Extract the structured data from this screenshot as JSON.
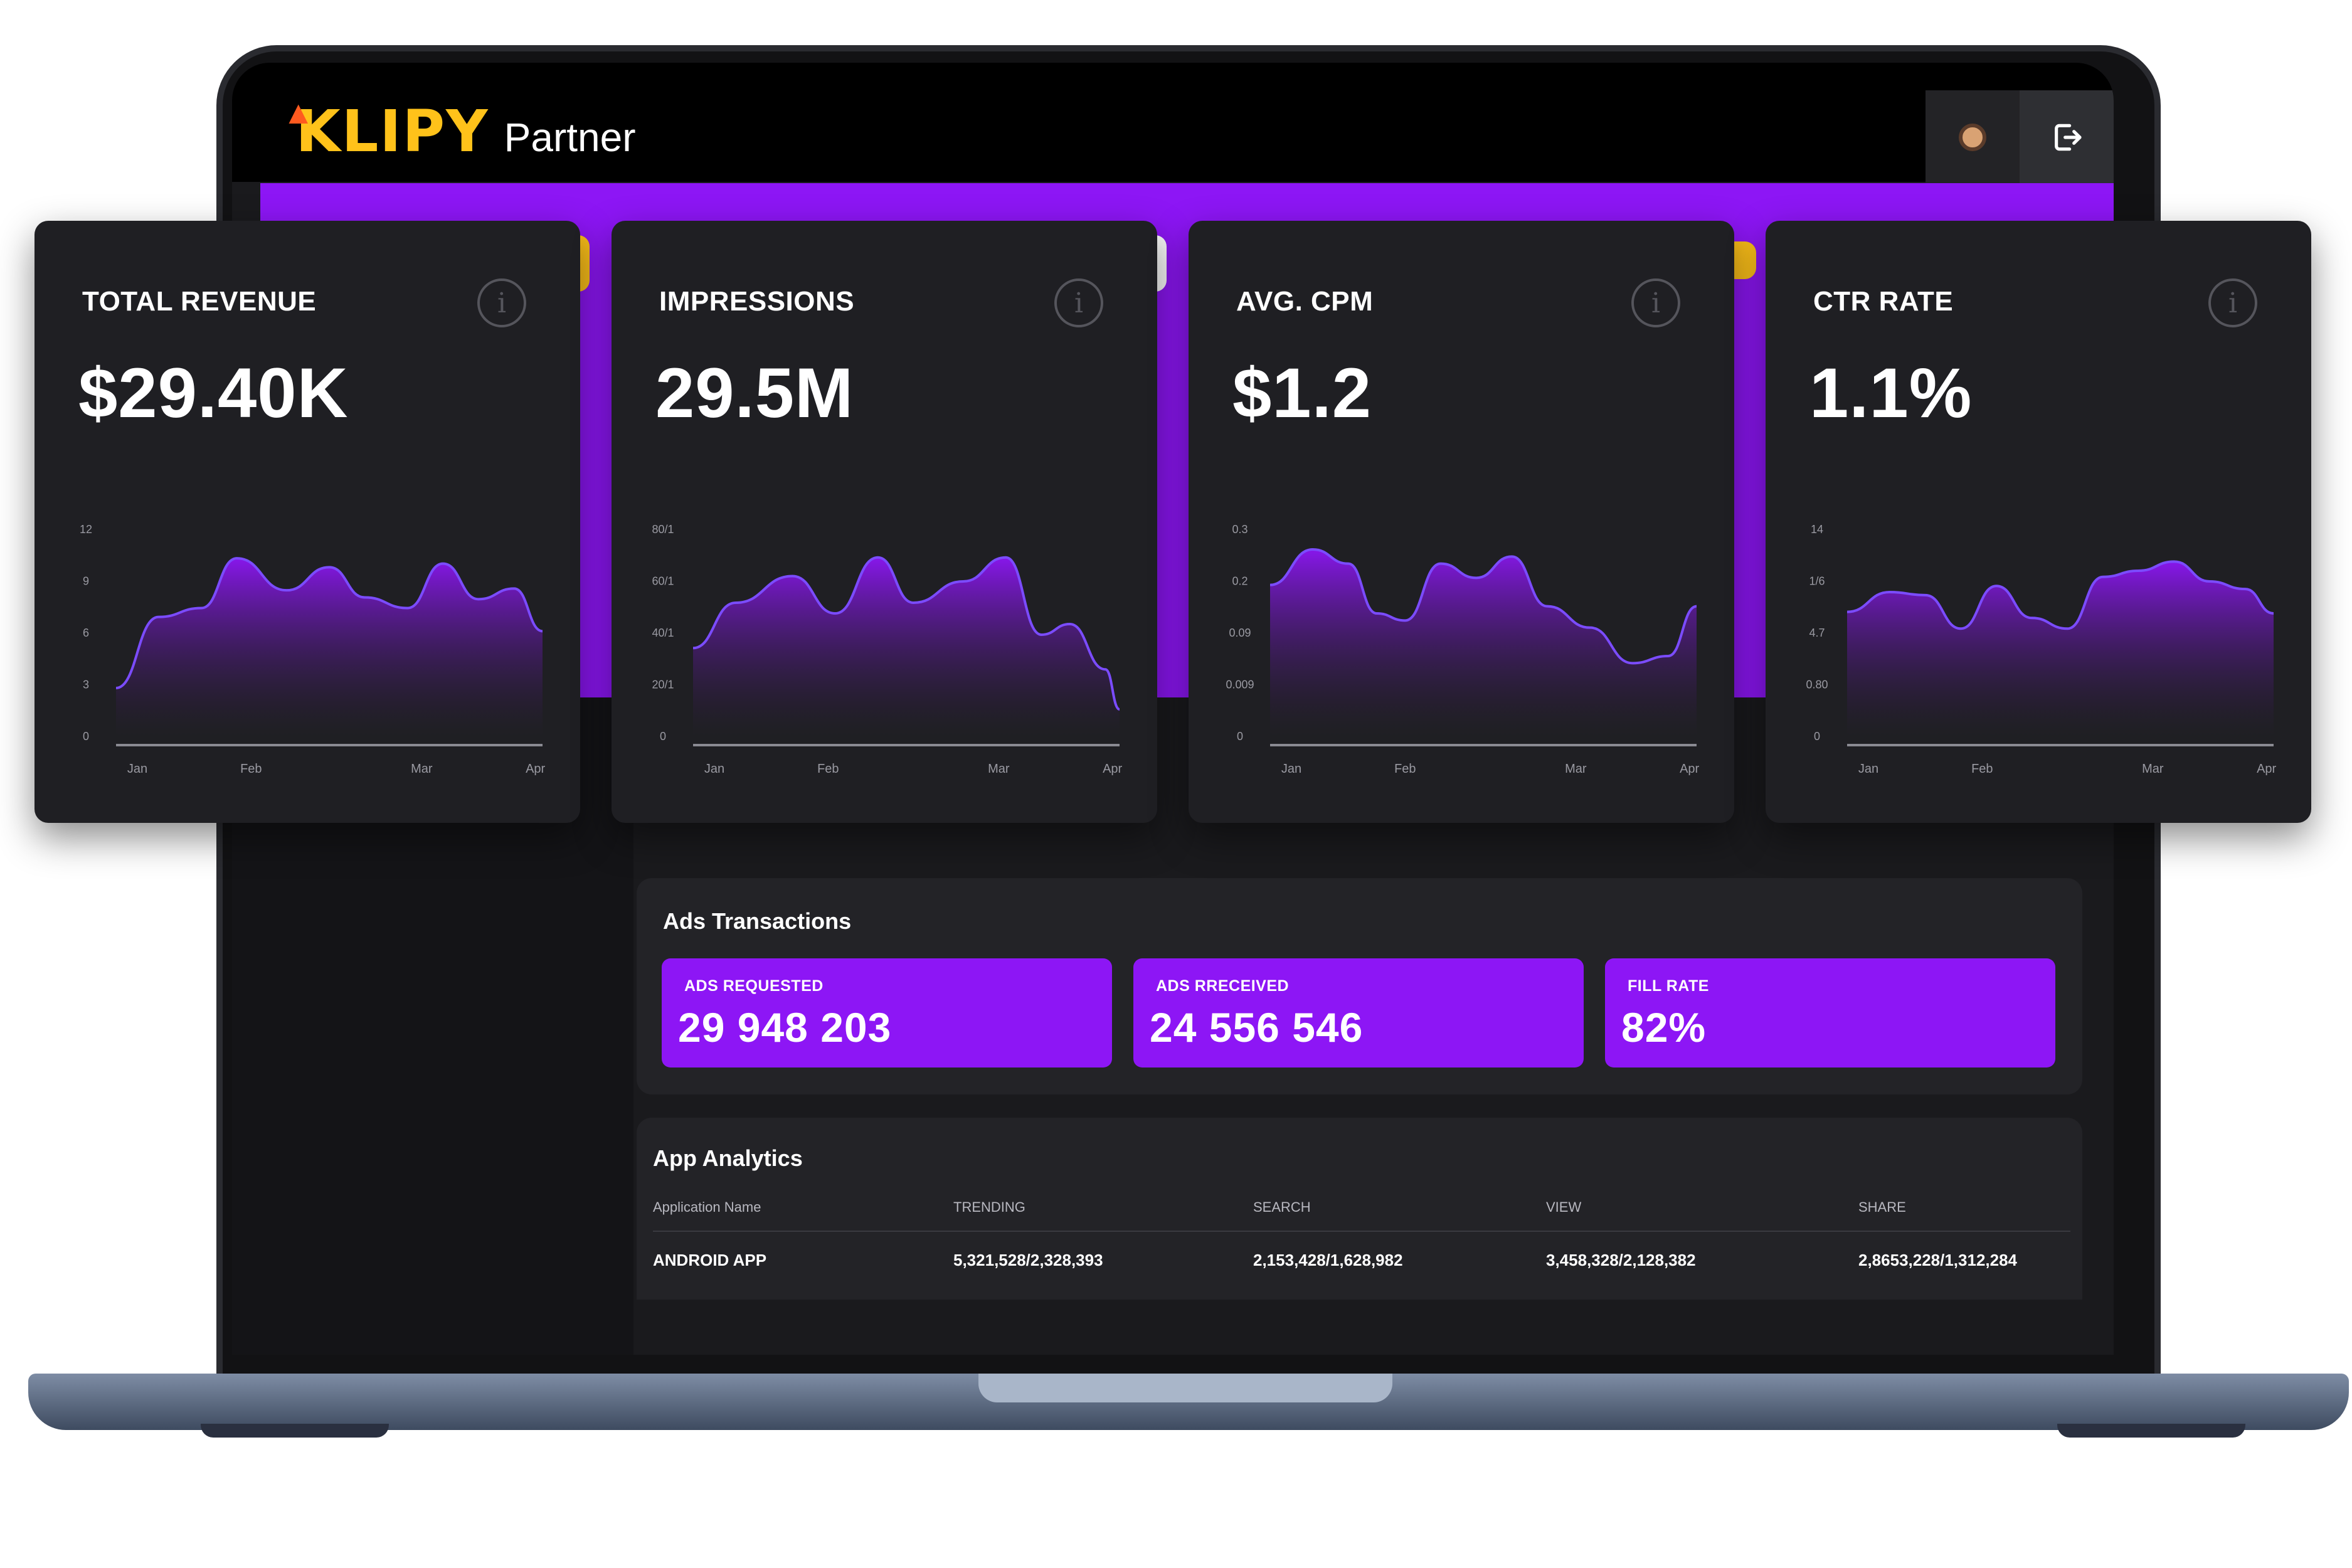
{
  "header": {
    "brand": "KLIPY",
    "brand_suffix": "Partner",
    "avatar_icon": "avatar-icon",
    "logout_icon": "logout-icon"
  },
  "colors": {
    "accent": "#8d16f5",
    "brand_yellow": "#ffc21a",
    "card_bg": "#1f1f23",
    "screen_bg": "#1a1a1d"
  },
  "metrics": [
    {
      "label": "TOTAL REVENUE",
      "value": "$29.40K",
      "chart_data": {
        "type": "area",
        "categories": [
          "Jan",
          "Feb",
          "Mar",
          "Apr"
        ],
        "y_ticks": [
          "12",
          "9",
          "6",
          "3",
          "0"
        ],
        "ylim": [
          0,
          12
        ],
        "x": [
          0,
          0.3,
          0.6,
          0.85,
          1.2,
          1.5,
          1.75,
          2.05,
          2.3,
          2.55,
          2.8,
          3
        ],
        "values": [
          3,
          7,
          7.5,
          10.3,
          8.5,
          9.8,
          8.1,
          7.5,
          10,
          8,
          8.6,
          6.2
        ]
      }
    },
    {
      "label": "IMPRESSIONS",
      "value": "29.5M",
      "chart_data": {
        "type": "area",
        "categories": [
          "Jan",
          "Feb",
          "Mar",
          "Apr"
        ],
        "y_ticks": [
          "80/1",
          "60/1",
          "40/1",
          "20/1",
          "0"
        ],
        "ylim": [
          0,
          80
        ],
        "x": [
          0,
          0.3,
          0.7,
          1.0,
          1.3,
          1.55,
          1.9,
          2.2,
          2.45,
          2.65,
          2.9,
          3
        ],
        "values": [
          35,
          52,
          62,
          48,
          69,
          52,
          60,
          69,
          40,
          44,
          27,
          12
        ]
      }
    },
    {
      "label": "AVG. CPM",
      "value": "$1.2",
      "chart_data": {
        "type": "area",
        "categories": [
          "Jan",
          "Feb",
          "Mar",
          "Apr"
        ],
        "y_ticks": [
          "0.3",
          "0.2",
          "0.09",
          "0.009",
          "0"
        ],
        "ylim": [
          0,
          0.3
        ],
        "x": [
          0,
          0.3,
          0.55,
          0.75,
          0.95,
          1.2,
          1.45,
          1.7,
          1.95,
          2.25,
          2.55,
          2.8,
          3
        ],
        "values": [
          0.22,
          0.27,
          0.25,
          0.18,
          0.17,
          0.25,
          0.23,
          0.26,
          0.19,
          0.16,
          0.11,
          0.12,
          0.19
        ]
      }
    },
    {
      "label": "CTR RATE",
      "value": "1.1%",
      "chart_data": {
        "type": "area",
        "categories": [
          "Jan",
          "Feb",
          "Mar",
          "Apr"
        ],
        "y_ticks": [
          "14",
          "1/6",
          "4.7",
          "0.80",
          "0"
        ],
        "ylim": [
          0,
          14
        ],
        "x": [
          0,
          0.3,
          0.55,
          0.8,
          1.05,
          1.3,
          1.55,
          1.8,
          2.05,
          2.3,
          2.55,
          2.8,
          3
        ],
        "values": [
          8.5,
          9.8,
          9.6,
          7.4,
          10.2,
          8.1,
          7.4,
          10.8,
          11.2,
          11.8,
          10.5,
          10,
          8.4
        ]
      }
    }
  ],
  "ads": {
    "title": "Ads Transactions",
    "items": [
      {
        "label": "ADS REQUESTED",
        "value": "29 948 203"
      },
      {
        "label": "ADS RRECEIVED",
        "value": "24 556 546"
      },
      {
        "label": "FILL RATE",
        "value": "82%"
      }
    ]
  },
  "analytics": {
    "title": "App Analytics",
    "columns": [
      "Application Name",
      "TRENDING",
      "SEARCH",
      "VIEW",
      "SHARE"
    ],
    "rows": [
      [
        "ANDROID APP",
        "5,321,528/2,328,393",
        "2,153,428/1,628,982",
        "3,458,328/2,128,382",
        "2,8653,228/1,312,284"
      ]
    ]
  }
}
